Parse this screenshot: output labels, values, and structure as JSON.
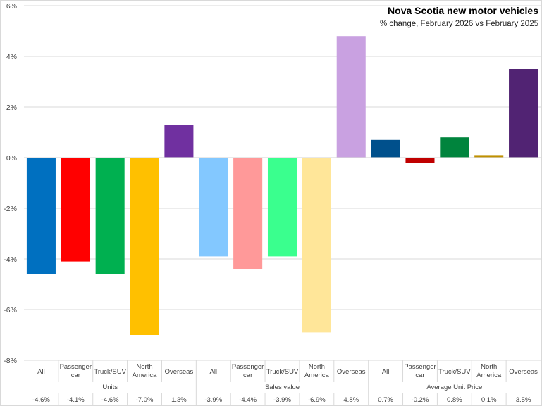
{
  "chart_data": {
    "type": "bar",
    "title": "Nova Scotia new motor vehicles",
    "subtitle": "% change, February 2026 vs February 2025",
    "xlabel": "",
    "ylabel": "",
    "ylim": [
      -8,
      6
    ],
    "yticks": [
      6,
      4,
      2,
      0,
      -2,
      -4,
      -6,
      -8
    ],
    "ytick_labels": [
      "6%",
      "4%",
      "2%",
      "0%",
      "-2%",
      "-4%",
      "-6%",
      "-8%"
    ],
    "grid": true,
    "legend": "none",
    "groups": [
      {
        "name": "Units",
        "categories": [
          "All",
          "Passenger car",
          "Truck/SUV",
          "North America",
          "Overseas"
        ],
        "category_lines": [
          [
            "All"
          ],
          [
            "Passenger",
            "car"
          ],
          [
            "Truck/SUV"
          ],
          [
            "North",
            "America"
          ],
          [
            "Overseas"
          ]
        ],
        "values": [
          -4.6,
          -4.1,
          -4.6,
          -7.0,
          1.3
        ],
        "value_labels": [
          "-4.6%",
          "-4.1%",
          "-4.6%",
          "-7.0%",
          "1.3%"
        ],
        "colors": [
          "#0070C0",
          "#FF0000",
          "#00B050",
          "#FFC000",
          "#7030A0"
        ]
      },
      {
        "name": "Sales value",
        "categories": [
          "All",
          "Passenger car",
          "Truck/SUV",
          "North America",
          "Overseas"
        ],
        "category_lines": [
          [
            "All"
          ],
          [
            "Passenger",
            "car"
          ],
          [
            "Truck/SUV"
          ],
          [
            "North",
            "America"
          ],
          [
            "Overseas"
          ]
        ],
        "values": [
          -3.9,
          -4.4,
          -3.9,
          -6.9,
          4.8
        ],
        "value_labels": [
          "-3.9%",
          "-4.4%",
          "-3.9%",
          "-6.9%",
          "4.8%"
        ],
        "colors": [
          "#83C8FF",
          "#FF9999",
          "#3AFF8E",
          "#FFE699",
          "#C9A1E1"
        ]
      },
      {
        "name": "Average Unit Price",
        "categories": [
          "All",
          "Passenger car",
          "Truck/SUV",
          "North America",
          "Overseas"
        ],
        "category_lines": [
          [
            "All"
          ],
          [
            "Passenger",
            "car"
          ],
          [
            "Truck/SUV"
          ],
          [
            "North",
            "America"
          ],
          [
            "Overseas"
          ]
        ],
        "values": [
          0.7,
          -0.2,
          0.8,
          0.1,
          3.5
        ],
        "value_labels": [
          "0.7%",
          "-0.2%",
          "0.8%",
          "0.1%",
          "3.5%"
        ],
        "colors": [
          "#00508C",
          "#C00000",
          "#00843D",
          "#BF9000",
          "#512373"
        ]
      }
    ]
  }
}
